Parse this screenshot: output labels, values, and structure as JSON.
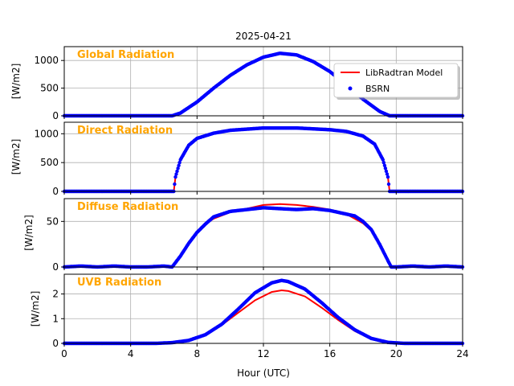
{
  "chart_data": {
    "type": "line",
    "title": "2025-04-21",
    "xlabel": "Hour (UTC)",
    "xlim": [
      0,
      24
    ],
    "xticks": [
      0,
      4,
      8,
      12,
      16,
      20,
      24
    ],
    "grid": true,
    "legend": {
      "placement": "top-right of first panel",
      "entries": [
        {
          "label": "LibRadtran Model",
          "color": "#ff0000",
          "style": "line"
        },
        {
          "label": "BSRN",
          "color": "#0000ff",
          "style": "dots"
        }
      ]
    },
    "panels": [
      {
        "name": "Global Radiation",
        "ylabel": "[W/m2]",
        "ylim": [
          0,
          1250
        ],
        "yticks": [
          0,
          500,
          1000
        ],
        "model": {
          "x": [
            0,
            6.5,
            7,
            8,
            9,
            10,
            11,
            12,
            13,
            14,
            15,
            16,
            17,
            18,
            19,
            19.6,
            24
          ],
          "y": [
            0,
            0,
            50,
            250,
            500,
            730,
            920,
            1060,
            1130,
            1100,
            980,
            800,
            560,
            300,
            80,
            0,
            0
          ]
        },
        "bsrn": {
          "x": [
            0,
            6.5,
            7,
            8,
            9,
            10,
            11,
            12,
            13,
            14,
            15,
            16,
            17,
            18,
            19,
            19.6,
            24
          ],
          "y": [
            0,
            0,
            50,
            250,
            500,
            730,
            920,
            1060,
            1130,
            1100,
            980,
            800,
            560,
            300,
            80,
            0,
            0
          ]
        }
      },
      {
        "name": "Direct Radiation",
        "ylabel": "[W/m2]",
        "ylim": [
          0,
          1200
        ],
        "yticks": [
          0,
          500,
          1000
        ],
        "model": {
          "x": [
            0,
            6.6,
            6.7,
            7,
            7.5,
            8,
            9,
            10,
            12,
            14,
            16,
            17,
            18,
            18.7,
            19.2,
            19.5,
            19.6,
            24
          ],
          "y": [
            0,
            0,
            250,
            550,
            800,
            920,
            1010,
            1060,
            1100,
            1100,
            1070,
            1040,
            960,
            820,
            550,
            250,
            0,
            0
          ]
        },
        "bsrn": {
          "x": [
            0,
            6.6,
            6.7,
            7,
            7.5,
            8,
            9,
            10,
            12,
            14,
            16,
            17,
            18,
            18.7,
            19.2,
            19.5,
            19.6,
            24
          ],
          "y": [
            0,
            0,
            250,
            550,
            800,
            920,
            1010,
            1060,
            1100,
            1100,
            1070,
            1040,
            960,
            820,
            550,
            250,
            0,
            0
          ]
        }
      },
      {
        "name": "Diffuse Radiation",
        "ylabel": "[W/m2]",
        "ylim": [
          0,
          75
        ],
        "yticks": [
          0,
          50
        ],
        "model": {
          "x": [
            0,
            6.5,
            7,
            7.5,
            8,
            8.5,
            9,
            10,
            11,
            12,
            13,
            14,
            15,
            16,
            17,
            18,
            18.5,
            19,
            19.5,
            19.7,
            24
          ],
          "y": [
            0,
            0,
            12,
            26,
            38,
            47,
            53,
            60,
            64,
            68,
            69,
            68,
            66,
            63,
            58,
            48,
            40,
            25,
            8,
            0,
            0
          ]
        },
        "bsrn": {
          "x": [
            0,
            1,
            2,
            3,
            4,
            5,
            6,
            6.5,
            7,
            7.5,
            8,
            8.5,
            9,
            10,
            11,
            12,
            13,
            14,
            15,
            16,
            17,
            17.5,
            18,
            18.5,
            19,
            19.5,
            19.7,
            20,
            21,
            22,
            23,
            24
          ],
          "y": [
            0,
            1,
            0,
            1,
            0,
            0,
            1,
            0,
            12,
            26,
            38,
            47,
            55,
            61,
            63,
            65,
            64,
            63,
            64,
            62,
            58,
            56,
            50,
            41,
            25,
            7,
            0,
            0,
            1,
            0,
            1,
            0
          ]
        }
      },
      {
        "name": "UVB Radiation",
        "ylabel": "[W/m2]",
        "ylim": [
          0,
          2.8
        ],
        "yticks": [
          0,
          1,
          2
        ],
        "model": {
          "x": [
            0,
            5.5,
            6.5,
            7.5,
            8.5,
            9.5,
            10.5,
            11.5,
            12.5,
            13.1,
            13.5,
            14.5,
            15.5,
            16.5,
            17.5,
            18.5,
            19.5,
            20.5,
            24
          ],
          "y": [
            0,
            0,
            0.03,
            0.12,
            0.35,
            0.75,
            1.25,
            1.75,
            2.08,
            2.15,
            2.12,
            1.9,
            1.45,
            0.95,
            0.5,
            0.18,
            0.04,
            0,
            0
          ]
        },
        "bsrn": {
          "x": [
            0,
            5.5,
            6.5,
            7.5,
            8.5,
            9.5,
            10.5,
            11.5,
            12.5,
            13.1,
            13.5,
            14.5,
            15.5,
            16.5,
            17.5,
            18.5,
            19.5,
            20.5,
            24
          ],
          "y": [
            0,
            0,
            0.03,
            0.12,
            0.35,
            0.78,
            1.4,
            2.05,
            2.45,
            2.55,
            2.5,
            2.2,
            1.65,
            1.05,
            0.55,
            0.2,
            0.04,
            0,
            0
          ]
        }
      }
    ]
  }
}
